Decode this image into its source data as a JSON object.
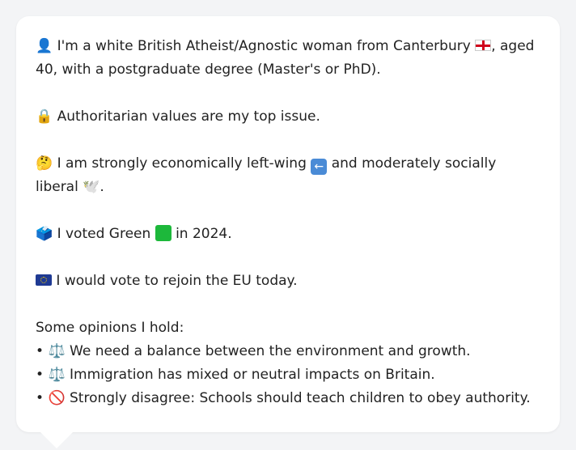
{
  "profile": {
    "intro": {
      "icon": "person-silhouette-icon",
      "text_before_flag": "I'm a white British Atheist/Agnostic woman from Canterbury",
      "flag": "england-flag-icon",
      "text_after_flag": ", aged 40, with a postgraduate degree (Master's or PhD)."
    },
    "top_issue": {
      "icon": "lock-icon",
      "text": "Authoritarian values are my top issue."
    },
    "economic": {
      "icon": "thinking-face-icon",
      "text_before_arrow": "I am strongly economically left-wing",
      "arrow": "left-arrow-icon",
      "text_after_arrow": "and moderately socially liberal",
      "tail_icon": "dove-icon",
      "tail_text": "."
    },
    "vote": {
      "icon": "ballot-box-icon",
      "text_before_square": "I voted Green",
      "square": "green-square-icon",
      "text_after_square": "in 2024."
    },
    "eu": {
      "icon": "eu-flag-icon",
      "text": "I would vote to rejoin the EU today."
    },
    "opinions": {
      "heading": "Some opinions I hold:",
      "items": [
        {
          "bullet": "•",
          "icon": "balance-scale-icon",
          "glyph": "⚖️",
          "text": "We need a balance between the environment and growth."
        },
        {
          "bullet": "•",
          "icon": "balance-scale-icon",
          "glyph": "⚖️",
          "text": "Immigration has mixed or neutral impacts on Britain."
        },
        {
          "bullet": "•",
          "icon": "prohibited-icon",
          "glyph": "🚫",
          "text": "Strongly disagree: Schools should teach children to obey authority."
        }
      ]
    }
  }
}
